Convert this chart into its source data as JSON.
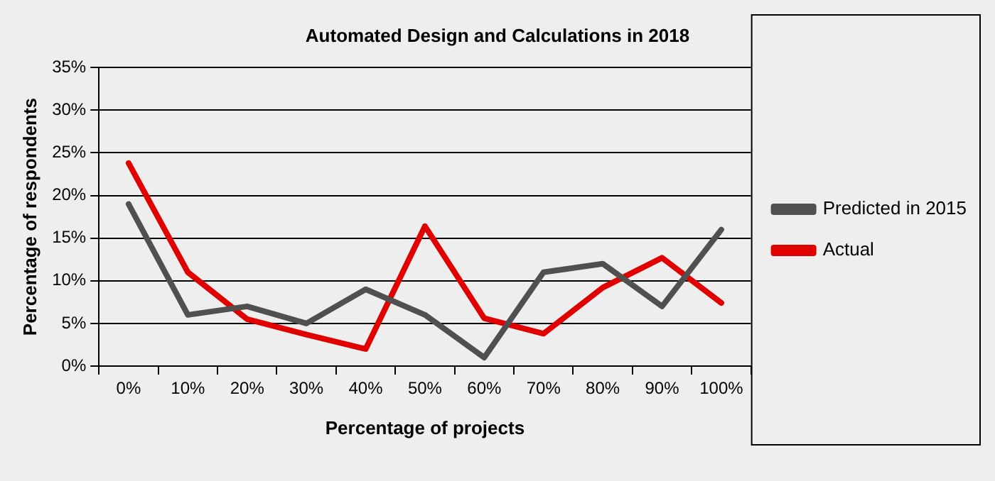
{
  "chart_data": {
    "type": "line",
    "title": "Automated Design and Calculations in 2018",
    "xlabel": "Percentage of projects",
    "ylabel": "Percentage of respondents",
    "categories": [
      "0%",
      "10%",
      "20%",
      "30%",
      "40%",
      "50%",
      "60%",
      "70%",
      "80%",
      "90%",
      "100%"
    ],
    "series": [
      {
        "name": "Predicted in 2015",
        "color": "#505050",
        "values": [
          19,
          6,
          7,
          5,
          9,
          6,
          1,
          11,
          12,
          7,
          16
        ]
      },
      {
        "name": "Actual",
        "color": "#e00000",
        "values": [
          23.8,
          11,
          5.5,
          3.7,
          2,
          16.4,
          5.6,
          3.8,
          9.2,
          12.7,
          7.4
        ]
      }
    ],
    "ylim": [
      0,
      35
    ],
    "yticks": [
      {
        "value": 0,
        "label": "0%"
      },
      {
        "value": 5,
        "label": "5%"
      },
      {
        "value": 10,
        "label": "10%"
      },
      {
        "value": 15,
        "label": "15%"
      },
      {
        "value": 20,
        "label": "20%"
      },
      {
        "value": 25,
        "label": "25%"
      },
      {
        "value": 30,
        "label": "30%"
      },
      {
        "value": 35,
        "label": "35%"
      }
    ],
    "grid": "y",
    "legend": "right",
    "marker": "none",
    "line_style": "solid"
  }
}
